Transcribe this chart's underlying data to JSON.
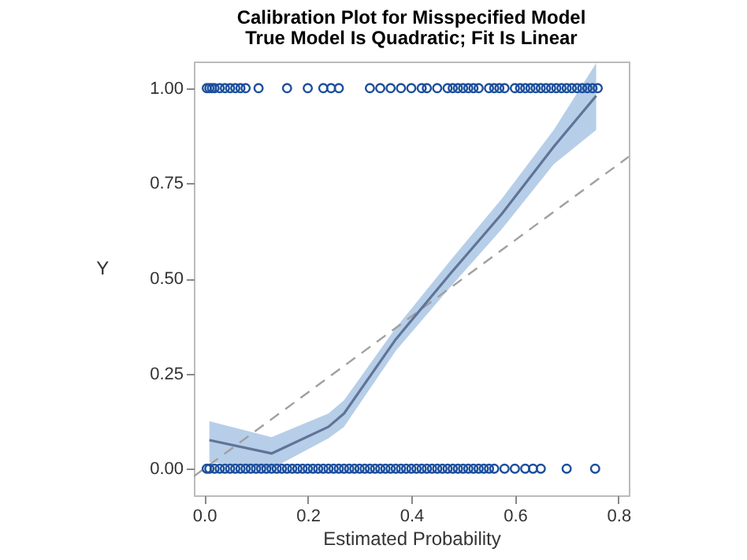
{
  "chart_data": {
    "type": "scatter",
    "title": "Calibration Plot for Misspecified Model",
    "subtitle": "True Model Is Quadratic; Fit Is Linear",
    "xlabel": "Estimated Probability",
    "ylabel": "Y",
    "xlim": [
      -0.02,
      0.82
    ],
    "ylim": [
      -0.07,
      1.07
    ],
    "xticks": [
      {
        "value": 0,
        "label": "0.0"
      },
      {
        "value": 0.2,
        "label": "0.2"
      },
      {
        "value": 0.4,
        "label": "0.4"
      },
      {
        "value": 0.6,
        "label": "0.6"
      },
      {
        "value": 0.8,
        "label": "0.8"
      }
    ],
    "yticks": [
      {
        "value": 0,
        "label": "0.00"
      },
      {
        "value": 0.25,
        "label": "0.25"
      },
      {
        "value": 0.5,
        "label": "0.50"
      },
      {
        "value": 0.75,
        "label": "0.75"
      },
      {
        "value": 1,
        "label": "1.00"
      }
    ],
    "grid": false,
    "series": [
      {
        "type": "line",
        "color": "#a0a0a0",
        "line_style": "dashed",
        "marker": "none",
        "x": [
          -0.02,
          0.82
        ],
        "values": [
          -0.02,
          0.82
        ]
      },
      {
        "type": "line",
        "color": "#5f7497",
        "line_style": "solid",
        "marker": "none",
        "x": [
          0.01,
          0.13,
          0.24,
          0.27,
          0.37,
          0.477,
          0.575,
          0.675,
          0.757
        ],
        "values": [
          0.075,
          0.04,
          0.11,
          0.145,
          0.34,
          0.515,
          0.67,
          0.846,
          0.98
        ],
        "lower": [
          0.017,
          0.0,
          0.08,
          0.11,
          0.31,
          0.48,
          0.63,
          0.8,
          0.89
        ],
        "upper": [
          0.125,
          0.083,
          0.145,
          0.18,
          0.37,
          0.55,
          0.71,
          0.89,
          1.066
        ]
      },
      {
        "color": "#1c4f9c",
        "marker": "circle",
        "x": [
          0.005,
          0.01,
          0.015,
          0.02,
          0.03,
          0.04,
          0.05,
          0.06,
          0.07,
          0.08,
          0.105,
          0.16,
          0.2,
          0.23,
          0.245,
          0.26,
          0.32,
          0.34,
          0.36,
          0.38,
          0.4,
          0.42,
          0.43,
          0.45,
          0.47,
          0.48,
          0.49,
          0.5,
          0.51,
          0.52,
          0.53,
          0.55,
          0.56,
          0.57,
          0.58,
          0.6,
          0.61,
          0.62,
          0.63,
          0.64,
          0.65,
          0.66,
          0.67,
          0.68,
          0.69,
          0.7,
          0.71,
          0.72,
          0.73,
          0.74,
          0.75,
          0.76
        ],
        "values": [
          1,
          1,
          1,
          1,
          1,
          1,
          1,
          1,
          1,
          1,
          1,
          1,
          1,
          1,
          1,
          1,
          1,
          1,
          1,
          1,
          1,
          1,
          1,
          1,
          1,
          1,
          1,
          1,
          1,
          1,
          1,
          1,
          1,
          1,
          1,
          1,
          1,
          1,
          1,
          1,
          1,
          1,
          1,
          1,
          1,
          1,
          1,
          1,
          1,
          1,
          1,
          1
        ]
      },
      {
        "color": "#1c4f9c",
        "marker": "circle",
        "x": [
          0.005,
          0.01,
          0.02,
          0.03,
          0.04,
          0.05,
          0.06,
          0.07,
          0.08,
          0.09,
          0.1,
          0.11,
          0.12,
          0.13,
          0.14,
          0.15,
          0.16,
          0.17,
          0.18,
          0.19,
          0.2,
          0.21,
          0.22,
          0.23,
          0.24,
          0.25,
          0.26,
          0.27,
          0.28,
          0.29,
          0.3,
          0.31,
          0.32,
          0.33,
          0.34,
          0.35,
          0.36,
          0.37,
          0.38,
          0.39,
          0.4,
          0.41,
          0.42,
          0.43,
          0.44,
          0.45,
          0.46,
          0.47,
          0.48,
          0.49,
          0.5,
          0.51,
          0.52,
          0.53,
          0.54,
          0.55,
          0.56,
          0.58,
          0.6,
          0.62,
          0.635,
          0.65,
          0.7,
          0.755
        ],
        "values": [
          0,
          0,
          0,
          0,
          0,
          0,
          0,
          0,
          0,
          0,
          0,
          0,
          0,
          0,
          0,
          0,
          0,
          0,
          0,
          0,
          0,
          0,
          0,
          0,
          0,
          0,
          0,
          0,
          0,
          0,
          0,
          0,
          0,
          0,
          0,
          0,
          0,
          0,
          0,
          0,
          0,
          0,
          0,
          0,
          0,
          0,
          0,
          0,
          0,
          0,
          0,
          0,
          0,
          0,
          0,
          0,
          0,
          0,
          0,
          0,
          0,
          0,
          0,
          0
        ]
      }
    ]
  }
}
